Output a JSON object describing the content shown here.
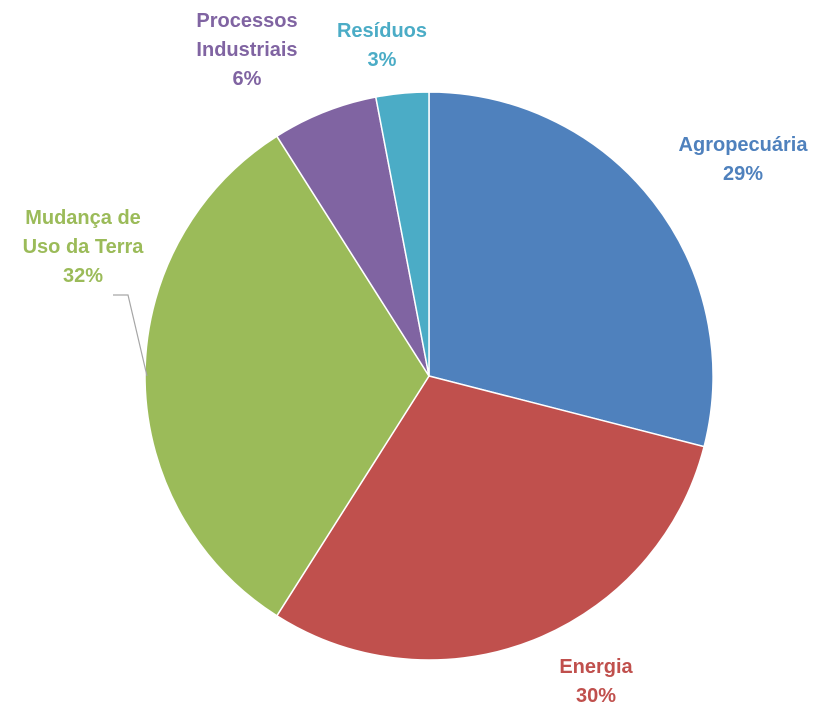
{
  "chart_data": {
    "type": "pie",
    "title": "",
    "start_angle_deg": 0,
    "direction": "clockwise",
    "series": [
      {
        "name": "Agropecuária",
        "value": 29,
        "value_label": "29%",
        "color": "#4F81BD",
        "label_lines": [
          "Agropecuária"
        ]
      },
      {
        "name": "Energia",
        "value": 30,
        "value_label": "30%",
        "color": "#C0504D",
        "label_lines": [
          "Energia"
        ]
      },
      {
        "name": "Mudança de Uso da Terra",
        "value": 32,
        "value_label": "32%",
        "color": "#9BBB59",
        "label_lines": [
          "Mudança de",
          "Uso da Terra"
        ]
      },
      {
        "name": "Processos Industriais",
        "value": 6,
        "value_label": "6%",
        "color": "#8064A2",
        "label_lines": [
          "Processos",
          "Industriais"
        ]
      },
      {
        "name": "Resíduos",
        "value": 3,
        "value_label": "3%",
        "color": "#4BACC6",
        "label_lines": [
          "Resíduos"
        ]
      }
    ]
  }
}
